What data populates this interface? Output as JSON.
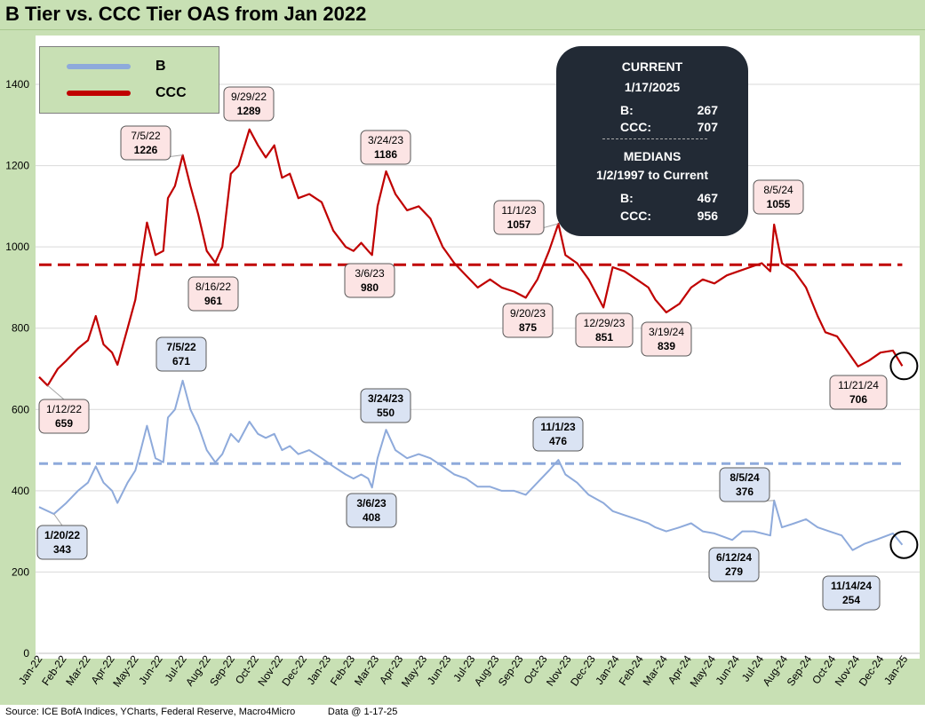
{
  "title": "B Tier vs. CCC Tier OAS from Jan 2022",
  "footer": "Source: ICE BofA Indices, YCharts, Federal Reserve, Macro4Micro            Data @ 1-17-25",
  "colors": {
    "b_series": "#8eaadb",
    "ccc_series": "#c00000",
    "frame": "#c8e0b4",
    "ccc_label_bg": "#fce4e4",
    "b_label_bg": "#dae3f3",
    "info_bg": "#222a35"
  },
  "legend": [
    {
      "label": "B",
      "color": "#8eaadb"
    },
    {
      "label": "CCC",
      "color": "#c00000"
    }
  ],
  "info_box": {
    "current_heading": "CURRENT",
    "current_date": "1/17/2025",
    "current_rows": [
      {
        "label": "B:",
        "value": "267"
      },
      {
        "label": "CCC:",
        "value": "707"
      }
    ],
    "medians_heading": "MEDIANS",
    "medians_period": "1/2/1997 to Current",
    "median_rows": [
      {
        "label": "B:",
        "value": "467"
      },
      {
        "label": "CCC:",
        "value": "956"
      }
    ]
  },
  "chart_data": {
    "type": "line",
    "title": "B Tier vs. CCC Tier OAS from Jan 2022",
    "xlabel": "",
    "ylabel": "",
    "ylim": [
      0,
      1400
    ],
    "yticks": [
      0,
      200,
      400,
      600,
      800,
      1000,
      1200,
      1400
    ],
    "x_tick_labels": [
      "Jan-22",
      "Feb-22",
      "Mar-22",
      "Apr-22",
      "May-22",
      "Jun-22",
      "Jul-22",
      "Aug-22",
      "Sep-22",
      "Oct-22",
      "Nov-22",
      "Dec-22",
      "Jan-23",
      "Feb-23",
      "Mar-23",
      "Apr-23",
      "May-23",
      "Jun-23",
      "Jul-23",
      "Aug-23",
      "Sep-23",
      "Oct-23",
      "Nov-23",
      "Dec-23",
      "Jan-24",
      "Feb-24",
      "Mar-24",
      "Apr-24",
      "May-24",
      "Jun-24",
      "Jul-24",
      "Aug-24",
      "Sep-24",
      "Oct-24",
      "Nov-24",
      "Dec-24",
      "Jan-25"
    ],
    "x_start": "2022-01-01",
    "x_end": "2025-01-20",
    "grid": true,
    "legend_position": "top-left",
    "series": [
      {
        "name": "CCC",
        "color": "#c00000",
        "points": [
          [
            "2022-01-01",
            680
          ],
          [
            "2022-01-12",
            659
          ],
          [
            "2022-01-25",
            700
          ],
          [
            "2022-02-05",
            720
          ],
          [
            "2022-02-20",
            750
          ],
          [
            "2022-03-05",
            770
          ],
          [
            "2022-03-15",
            830
          ],
          [
            "2022-03-25",
            760
          ],
          [
            "2022-04-05",
            740
          ],
          [
            "2022-04-12",
            710
          ],
          [
            "2022-04-25",
            800
          ],
          [
            "2022-05-05",
            870
          ],
          [
            "2022-05-12",
            960
          ],
          [
            "2022-05-20",
            1060
          ],
          [
            "2022-05-31",
            980
          ],
          [
            "2022-06-10",
            990
          ],
          [
            "2022-06-16",
            1120
          ],
          [
            "2022-06-25",
            1150
          ],
          [
            "2022-07-05",
            1226
          ],
          [
            "2022-07-15",
            1150
          ],
          [
            "2022-07-25",
            1080
          ],
          [
            "2022-08-05",
            990
          ],
          [
            "2022-08-16",
            961
          ],
          [
            "2022-08-25",
            1000
          ],
          [
            "2022-09-05",
            1180
          ],
          [
            "2022-09-15",
            1200
          ],
          [
            "2022-09-29",
            1289
          ],
          [
            "2022-10-10",
            1250
          ],
          [
            "2022-10-20",
            1220
          ],
          [
            "2022-10-31",
            1250
          ],
          [
            "2022-11-10",
            1170
          ],
          [
            "2022-11-20",
            1180
          ],
          [
            "2022-12-01",
            1120
          ],
          [
            "2022-12-15",
            1130
          ],
          [
            "2022-12-31",
            1110
          ],
          [
            "2023-01-15",
            1040
          ],
          [
            "2023-01-31",
            1000
          ],
          [
            "2023-02-10",
            990
          ],
          [
            "2023-02-20",
            1010
          ],
          [
            "2023-03-01",
            990
          ],
          [
            "2023-03-06",
            980
          ],
          [
            "2023-03-13",
            1100
          ],
          [
            "2023-03-24",
            1186
          ],
          [
            "2023-04-05",
            1130
          ],
          [
            "2023-04-20",
            1090
          ],
          [
            "2023-05-05",
            1100
          ],
          [
            "2023-05-20",
            1070
          ],
          [
            "2023-06-05",
            1000
          ],
          [
            "2023-06-20",
            960
          ],
          [
            "2023-07-05",
            930
          ],
          [
            "2023-07-20",
            900
          ],
          [
            "2023-08-05",
            920
          ],
          [
            "2023-08-20",
            900
          ],
          [
            "2023-09-05",
            890
          ],
          [
            "2023-09-20",
            875
          ],
          [
            "2023-10-05",
            920
          ],
          [
            "2023-10-20",
            990
          ],
          [
            "2023-11-01",
            1057
          ],
          [
            "2023-11-10",
            980
          ],
          [
            "2023-11-25",
            960
          ],
          [
            "2023-12-10",
            920
          ],
          [
            "2023-12-29",
            851
          ],
          [
            "2024-01-10",
            950
          ],
          [
            "2024-01-25",
            940
          ],
          [
            "2024-02-10",
            920
          ],
          [
            "2024-02-25",
            900
          ],
          [
            "2024-03-05",
            870
          ],
          [
            "2024-03-19",
            839
          ],
          [
            "2024-04-05",
            860
          ],
          [
            "2024-04-20",
            900
          ],
          [
            "2024-05-05",
            920
          ],
          [
            "2024-05-20",
            910
          ],
          [
            "2024-06-05",
            930
          ],
          [
            "2024-06-20",
            940
          ],
          [
            "2024-07-05",
            950
          ],
          [
            "2024-07-20",
            960
          ],
          [
            "2024-07-31",
            940
          ],
          [
            "2024-08-05",
            1055
          ],
          [
            "2024-08-15",
            960
          ],
          [
            "2024-08-31",
            940
          ],
          [
            "2024-09-15",
            900
          ],
          [
            "2024-09-30",
            830
          ],
          [
            "2024-10-10",
            790
          ],
          [
            "2024-10-25",
            780
          ],
          [
            "2024-11-05",
            750
          ],
          [
            "2024-11-21",
            706
          ],
          [
            "2024-12-05",
            720
          ],
          [
            "2024-12-20",
            740
          ],
          [
            "2025-01-05",
            745
          ],
          [
            "2025-01-17",
            707
          ]
        ]
      },
      {
        "name": "B",
        "color": "#8eaadb",
        "points": [
          [
            "2022-01-01",
            360
          ],
          [
            "2022-01-20",
            343
          ],
          [
            "2022-02-05",
            370
          ],
          [
            "2022-02-20",
            400
          ],
          [
            "2022-03-05",
            420
          ],
          [
            "2022-03-15",
            460
          ],
          [
            "2022-03-25",
            420
          ],
          [
            "2022-04-05",
            400
          ],
          [
            "2022-04-12",
            370
          ],
          [
            "2022-04-25",
            420
          ],
          [
            "2022-05-05",
            450
          ],
          [
            "2022-05-12",
            500
          ],
          [
            "2022-05-20",
            560
          ],
          [
            "2022-05-31",
            480
          ],
          [
            "2022-06-10",
            470
          ],
          [
            "2022-06-16",
            580
          ],
          [
            "2022-06-25",
            600
          ],
          [
            "2022-07-05",
            671
          ],
          [
            "2022-07-15",
            600
          ],
          [
            "2022-07-25",
            560
          ],
          [
            "2022-08-05",
            500
          ],
          [
            "2022-08-16",
            470
          ],
          [
            "2022-08-25",
            490
          ],
          [
            "2022-09-05",
            540
          ],
          [
            "2022-09-15",
            520
          ],
          [
            "2022-09-29",
            570
          ],
          [
            "2022-10-10",
            540
          ],
          [
            "2022-10-20",
            530
          ],
          [
            "2022-10-31",
            540
          ],
          [
            "2022-11-10",
            500
          ],
          [
            "2022-11-20",
            510
          ],
          [
            "2022-12-01",
            490
          ],
          [
            "2022-12-15",
            500
          ],
          [
            "2022-12-31",
            480
          ],
          [
            "2023-01-15",
            460
          ],
          [
            "2023-01-31",
            440
          ],
          [
            "2023-02-10",
            430
          ],
          [
            "2023-02-20",
            440
          ],
          [
            "2023-03-01",
            430
          ],
          [
            "2023-03-06",
            408
          ],
          [
            "2023-03-13",
            480
          ],
          [
            "2023-03-24",
            550
          ],
          [
            "2023-04-05",
            500
          ],
          [
            "2023-04-20",
            480
          ],
          [
            "2023-05-05",
            490
          ],
          [
            "2023-05-20",
            480
          ],
          [
            "2023-06-05",
            460
          ],
          [
            "2023-06-20",
            440
          ],
          [
            "2023-07-05",
            430
          ],
          [
            "2023-07-20",
            410
          ],
          [
            "2023-08-05",
            410
          ],
          [
            "2023-08-20",
            400
          ],
          [
            "2023-09-05",
            400
          ],
          [
            "2023-09-20",
            390
          ],
          [
            "2023-10-05",
            420
          ],
          [
            "2023-10-20",
            450
          ],
          [
            "2023-11-01",
            476
          ],
          [
            "2023-11-10",
            440
          ],
          [
            "2023-11-25",
            420
          ],
          [
            "2023-12-10",
            390
          ],
          [
            "2023-12-29",
            370
          ],
          [
            "2024-01-10",
            350
          ],
          [
            "2024-01-25",
            340
          ],
          [
            "2024-02-10",
            330
          ],
          [
            "2024-02-25",
            320
          ],
          [
            "2024-03-05",
            310
          ],
          [
            "2024-03-19",
            300
          ],
          [
            "2024-04-05",
            310
          ],
          [
            "2024-04-20",
            320
          ],
          [
            "2024-05-05",
            300
          ],
          [
            "2024-05-20",
            295
          ],
          [
            "2024-06-12",
            279
          ],
          [
            "2024-06-25",
            300
          ],
          [
            "2024-07-10",
            300
          ],
          [
            "2024-07-31",
            290
          ],
          [
            "2024-08-05",
            376
          ],
          [
            "2024-08-15",
            310
          ],
          [
            "2024-08-31",
            320
          ],
          [
            "2024-09-15",
            330
          ],
          [
            "2024-09-30",
            310
          ],
          [
            "2024-10-15",
            300
          ],
          [
            "2024-10-31",
            290
          ],
          [
            "2024-11-14",
            254
          ],
          [
            "2024-11-30",
            270
          ],
          [
            "2024-12-15",
            280
          ],
          [
            "2025-01-05",
            295
          ],
          [
            "2025-01-17",
            267
          ]
        ]
      },
      {
        "name": "",
        "color": "#c00000",
        "dashed": true,
        "points": [
          [
            "2022-01-01",
            956
          ],
          [
            "2025-01-17",
            956
          ]
        ]
      },
      {
        "name": "",
        "color": "#8eaadb",
        "dashed": true,
        "points": [
          [
            "2022-01-01",
            467
          ],
          [
            "2025-01-17",
            467
          ]
        ]
      }
    ],
    "annotations": [
      {
        "series": "CCC",
        "date": "1/12/22",
        "value": 659,
        "x": "2022-01-12",
        "label_side": "below"
      },
      {
        "series": "CCC",
        "date": "7/5/22",
        "value": 1226,
        "x": "2022-07-05",
        "label_side": "above-left"
      },
      {
        "series": "CCC",
        "date": "8/16/22",
        "value": 961,
        "x": "2022-08-16",
        "label_side": "below"
      },
      {
        "series": "CCC",
        "date": "9/29/22",
        "value": 1289,
        "x": "2022-09-29",
        "label_side": "above"
      },
      {
        "series": "CCC",
        "date": "3/24/23",
        "value": 1186,
        "x": "2023-03-24",
        "label_side": "above"
      },
      {
        "series": "CCC",
        "date": "3/6/23",
        "value": 980,
        "x": "2023-03-06",
        "label_side": "below"
      },
      {
        "series": "CCC",
        "date": "11/1/23",
        "value": 1057,
        "x": "2023-11-01",
        "label_side": "above-left"
      },
      {
        "series": "CCC",
        "date": "9/20/23",
        "value": 875,
        "x": "2023-09-20",
        "label_side": "below"
      },
      {
        "series": "CCC",
        "date": "12/29/23",
        "value": 851,
        "x": "2023-12-29",
        "label_side": "below"
      },
      {
        "series": "CCC",
        "date": "3/19/24",
        "value": 839,
        "x": "2024-03-19",
        "label_side": "below"
      },
      {
        "series": "CCC",
        "date": "8/5/24",
        "value": 1055,
        "x": "2024-08-05",
        "label_side": "above"
      },
      {
        "series": "CCC",
        "date": "11/21/24",
        "value": 706,
        "x": "2024-11-21",
        "label_side": "below"
      },
      {
        "series": "B",
        "date": "1/20/22",
        "value": 343,
        "x": "2022-01-20",
        "label_side": "below"
      },
      {
        "series": "B",
        "date": "7/5/22",
        "value": 671,
        "x": "2022-07-05",
        "label_side": "above"
      },
      {
        "series": "B",
        "date": "3/24/23",
        "value": 550,
        "x": "2023-03-24",
        "label_side": "above"
      },
      {
        "series": "B",
        "date": "3/6/23",
        "value": 408,
        "x": "2023-03-06",
        "label_side": "below"
      },
      {
        "series": "B",
        "date": "11/1/23",
        "value": 476,
        "x": "2023-11-01",
        "label_side": "above"
      },
      {
        "series": "B",
        "date": "8/5/24",
        "value": 376,
        "x": "2024-08-05",
        "label_side": "above"
      },
      {
        "series": "B",
        "date": "6/12/24",
        "value": 279,
        "x": "2024-06-12",
        "label_side": "below"
      },
      {
        "series": "B",
        "date": "11/14/24",
        "value": 254,
        "x": "2024-11-14",
        "label_side": "below"
      }
    ]
  }
}
